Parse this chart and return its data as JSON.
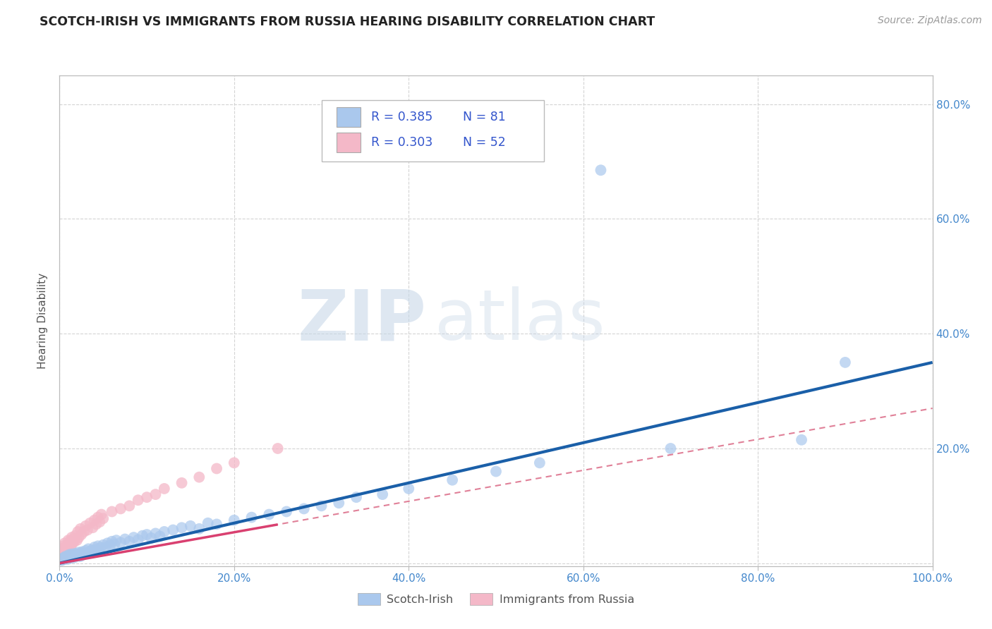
{
  "title": "SCOTCH-IRISH VS IMMIGRANTS FROM RUSSIA HEARING DISABILITY CORRELATION CHART",
  "source": "Source: ZipAtlas.com",
  "ylabel": "Hearing Disability",
  "xlim": [
    0.0,
    1.0
  ],
  "ylim": [
    -0.005,
    0.85
  ],
  "xticks": [
    0.0,
    0.2,
    0.4,
    0.6,
    0.8,
    1.0
  ],
  "xticklabels": [
    "0.0%",
    "20.0%",
    "40.0%",
    "60.0%",
    "80.0%",
    "100.0%"
  ],
  "yticks": [
    0.0,
    0.2,
    0.4,
    0.6,
    0.8
  ],
  "yticklabels": [
    "",
    "20.0%",
    "40.0%",
    "60.0%",
    "80.0%"
  ],
  "grid_color": "#d0d0d0",
  "background_color": "#ffffff",
  "watermark_zip": "ZIP",
  "watermark_atlas": "atlas",
  "legend_R1": "R = 0.385",
  "legend_N1": "N = 81",
  "legend_R2": "R = 0.303",
  "legend_N2": "N = 52",
  "scotch_irish_color": "#aac8ed",
  "russia_color": "#f4b8c8",
  "scotch_irish_line_color": "#1a5fa8",
  "russia_line_color": "#d94070",
  "russia_dash_color": "#e08098",
  "title_color": "#222222",
  "stats_color": "#3355cc",
  "si_line_slope": 0.35,
  "si_line_intercept": 0.0,
  "ru_line_slope": 0.27,
  "ru_line_intercept": 0.0,
  "ru_line_max_x": 0.5,
  "si_scatter_x": [
    0.002,
    0.003,
    0.004,
    0.005,
    0.005,
    0.006,
    0.007,
    0.007,
    0.008,
    0.009,
    0.01,
    0.01,
    0.011,
    0.012,
    0.013,
    0.014,
    0.015,
    0.015,
    0.016,
    0.017,
    0.018,
    0.019,
    0.02,
    0.021,
    0.022,
    0.023,
    0.024,
    0.025,
    0.026,
    0.028,
    0.03,
    0.032,
    0.033,
    0.035,
    0.037,
    0.04,
    0.042,
    0.044,
    0.045,
    0.047,
    0.05,
    0.053,
    0.055,
    0.058,
    0.06,
    0.063,
    0.065,
    0.07,
    0.075,
    0.08,
    0.085,
    0.09,
    0.095,
    0.1,
    0.105,
    0.11,
    0.115,
    0.12,
    0.13,
    0.14,
    0.15,
    0.16,
    0.17,
    0.18,
    0.2,
    0.22,
    0.24,
    0.26,
    0.28,
    0.3,
    0.32,
    0.34,
    0.37,
    0.4,
    0.45,
    0.5,
    0.55,
    0.62,
    0.7,
    0.85,
    0.9
  ],
  "si_scatter_y": [
    0.005,
    0.008,
    0.006,
    0.01,
    0.007,
    0.009,
    0.012,
    0.008,
    0.011,
    0.007,
    0.013,
    0.01,
    0.015,
    0.012,
    0.009,
    0.016,
    0.011,
    0.014,
    0.013,
    0.01,
    0.017,
    0.014,
    0.016,
    0.013,
    0.019,
    0.015,
    0.012,
    0.018,
    0.02,
    0.016,
    0.022,
    0.018,
    0.025,
    0.02,
    0.023,
    0.028,
    0.024,
    0.03,
    0.021,
    0.027,
    0.032,
    0.028,
    0.035,
    0.031,
    0.038,
    0.033,
    0.04,
    0.036,
    0.042,
    0.038,
    0.045,
    0.041,
    0.048,
    0.05,
    0.044,
    0.052,
    0.047,
    0.055,
    0.058,
    0.062,
    0.065,
    0.06,
    0.07,
    0.068,
    0.075,
    0.08,
    0.085,
    0.09,
    0.095,
    0.1,
    0.105,
    0.115,
    0.12,
    0.13,
    0.145,
    0.16,
    0.175,
    0.685,
    0.2,
    0.215,
    0.35
  ],
  "ru_scatter_x": [
    0.001,
    0.002,
    0.002,
    0.003,
    0.003,
    0.004,
    0.004,
    0.005,
    0.005,
    0.006,
    0.006,
    0.007,
    0.008,
    0.009,
    0.01,
    0.01,
    0.011,
    0.012,
    0.013,
    0.014,
    0.015,
    0.016,
    0.017,
    0.018,
    0.02,
    0.021,
    0.022,
    0.024,
    0.025,
    0.028,
    0.03,
    0.032,
    0.035,
    0.038,
    0.04,
    0.042,
    0.044,
    0.046,
    0.048,
    0.05,
    0.06,
    0.07,
    0.08,
    0.09,
    0.1,
    0.11,
    0.12,
    0.14,
    0.16,
    0.18,
    0.2,
    0.25
  ],
  "ru_scatter_y": [
    0.01,
    0.015,
    0.02,
    0.012,
    0.025,
    0.018,
    0.03,
    0.013,
    0.022,
    0.027,
    0.035,
    0.02,
    0.028,
    0.032,
    0.025,
    0.04,
    0.033,
    0.038,
    0.03,
    0.045,
    0.035,
    0.042,
    0.038,
    0.048,
    0.04,
    0.055,
    0.045,
    0.06,
    0.05,
    0.055,
    0.065,
    0.058,
    0.07,
    0.062,
    0.075,
    0.068,
    0.08,
    0.072,
    0.085,
    0.078,
    0.09,
    0.095,
    0.1,
    0.11,
    0.115,
    0.12,
    0.13,
    0.14,
    0.15,
    0.165,
    0.175,
    0.2
  ]
}
